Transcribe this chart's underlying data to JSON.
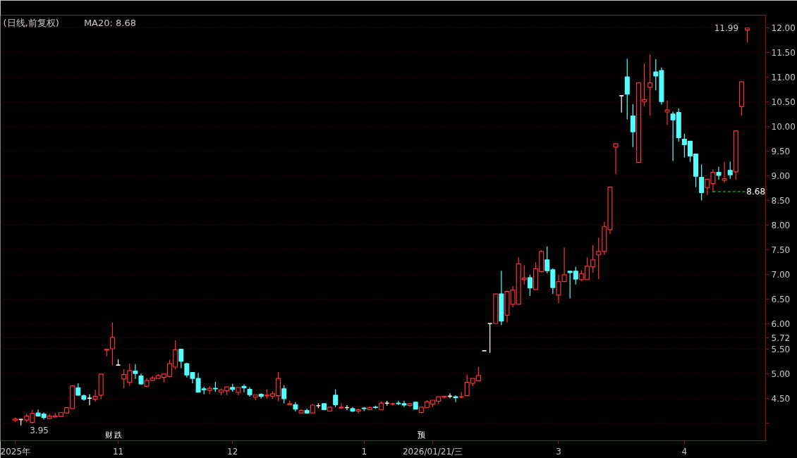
{
  "chart_data": {
    "type": "candlestick",
    "title": "(日线,前复权)",
    "subtitle": "MA20: 8.68",
    "categories": [
      "2025年",
      null,
      null,
      null,
      null,
      null,
      null,
      null,
      null,
      null,
      null,
      null,
      null,
      null,
      null,
      null,
      null,
      null,
      "11",
      null,
      null,
      null,
      null,
      null,
      null,
      null,
      null,
      null,
      null,
      null,
      null,
      null,
      null,
      null,
      null,
      null,
      null,
      null,
      "12",
      null,
      null,
      null,
      null,
      null,
      null,
      null,
      null,
      null,
      null,
      null,
      null,
      null,
      null,
      null,
      null,
      null,
      null,
      null,
      null,
      null,
      null,
      "1",
      null,
      null,
      null,
      null,
      null,
      null,
      null,
      null,
      null,
      null,
      null,
      "2026/01/21/三",
      null,
      null,
      null,
      null,
      null,
      null,
      null,
      null,
      null,
      null,
      null,
      null,
      null,
      null,
      null,
      null,
      null,
      null,
      null,
      null,
      null,
      "3",
      null,
      null,
      null,
      null,
      null,
      null,
      null,
      null,
      null,
      null,
      null,
      null,
      null,
      null,
      null,
      null,
      null,
      null,
      null,
      null,
      null,
      "4",
      null,
      null,
      null,
      null,
      null,
      null,
      null,
      null,
      null,
      null,
      null
    ],
    "ohlc": [
      [
        4.05,
        4.11,
        4.02,
        4.08
      ],
      [
        4.07,
        4.08,
        3.95,
        4.07
      ],
      [
        4.06,
        4.19,
        4.01,
        4.14
      ],
      [
        4.01,
        4.27,
        3.99,
        4.19
      ],
      [
        4.2,
        4.27,
        4.13,
        4.14
      ],
      [
        4.18,
        4.21,
        4.07,
        4.11
      ],
      [
        4.09,
        4.18,
        4.09,
        4.14
      ],
      [
        4.12,
        4.2,
        4.12,
        4.14
      ],
      [
        4.13,
        4.21,
        4.13,
        4.21
      ],
      [
        4.2,
        4.31,
        4.18,
        4.31
      ],
      [
        4.29,
        4.75,
        4.29,
        4.75
      ],
      [
        4.71,
        4.8,
        4.55,
        4.56
      ],
      [
        4.55,
        4.58,
        4.45,
        4.48
      ],
      [
        4.5,
        4.58,
        4.36,
        4.5
      ],
      [
        4.48,
        4.67,
        4.43,
        4.54
      ],
      [
        4.56,
        4.99,
        4.48,
        4.99
      ],
      [
        5.47,
        5.49,
        5.35,
        5.49
      ],
      [
        5.5,
        6.03,
        5.17,
        5.73
      ],
      [
        5.17,
        5.29,
        5.17,
        5.17
      ],
      [
        4.89,
        5.09,
        4.7,
        4.98
      ],
      [
        4.82,
        5.2,
        4.75,
        5.06
      ],
      [
        5.05,
        5.19,
        4.89,
        5.0
      ],
      [
        4.95,
        5.0,
        4.77,
        4.79
      ],
      [
        4.74,
        4.91,
        4.72,
        4.86
      ],
      [
        4.86,
        4.95,
        4.86,
        4.91
      ],
      [
        4.9,
        4.99,
        4.9,
        4.96
      ],
      [
        4.92,
        4.99,
        4.82,
        4.99
      ],
      [
        4.94,
        5.28,
        4.92,
        5.2
      ],
      [
        5.13,
        5.67,
        5.08,
        5.48
      ],
      [
        5.49,
        5.5,
        5.11,
        5.25
      ],
      [
        5.2,
        5.22,
        4.92,
        4.97
      ],
      [
        5.02,
        5.02,
        4.8,
        4.9
      ],
      [
        4.9,
        5.01,
        4.62,
        4.62
      ],
      [
        4.69,
        4.73,
        4.58,
        4.67
      ],
      [
        4.66,
        4.74,
        4.58,
        4.7
      ],
      [
        4.7,
        4.83,
        4.63,
        4.69
      ],
      [
        4.62,
        4.7,
        4.56,
        4.67
      ],
      [
        4.65,
        4.73,
        4.56,
        4.73
      ],
      [
        4.72,
        4.79,
        4.63,
        4.68
      ],
      [
        4.62,
        4.72,
        4.56,
        4.72
      ],
      [
        4.74,
        4.78,
        4.62,
        4.71
      ],
      [
        4.68,
        4.72,
        4.53,
        4.57
      ],
      [
        4.52,
        4.57,
        4.46,
        4.57
      ],
      [
        4.58,
        4.6,
        4.49,
        4.54
      ],
      [
        4.55,
        4.68,
        4.49,
        4.56
      ],
      [
        4.54,
        4.64,
        4.48,
        4.59
      ],
      [
        4.55,
        5.03,
        4.44,
        4.9
      ],
      [
        4.69,
        4.76,
        4.4,
        4.49
      ],
      [
        4.37,
        4.45,
        4.37,
        4.39
      ],
      [
        4.37,
        4.42,
        4.23,
        4.28
      ],
      [
        4.2,
        4.28,
        4.2,
        4.25
      ],
      [
        4.25,
        4.29,
        4.2,
        4.2
      ],
      [
        4.2,
        4.38,
        4.2,
        4.36
      ],
      [
        4.35,
        4.4,
        4.3,
        4.35
      ],
      [
        4.39,
        4.39,
        4.26,
        4.27
      ],
      [
        4.24,
        4.32,
        4.24,
        4.32
      ],
      [
        4.56,
        4.68,
        4.32,
        4.37
      ],
      [
        4.3,
        4.4,
        4.28,
        4.32
      ],
      [
        4.31,
        4.36,
        4.26,
        4.31
      ],
      [
        4.29,
        4.32,
        4.22,
        4.24
      ],
      [
        4.24,
        4.29,
        4.19,
        4.27
      ],
      [
        4.3,
        4.32,
        4.24,
        4.29
      ],
      [
        4.27,
        4.34,
        4.26,
        4.31
      ],
      [
        4.32,
        4.35,
        4.28,
        4.31
      ],
      [
        4.27,
        4.44,
        4.27,
        4.4
      ],
      [
        4.4,
        4.45,
        4.35,
        4.4
      ],
      [
        4.38,
        4.41,
        4.35,
        4.39
      ],
      [
        4.4,
        4.45,
        4.36,
        4.39
      ],
      [
        4.39,
        4.45,
        4.32,
        4.36
      ],
      [
        4.35,
        4.4,
        4.33,
        4.39
      ],
      [
        4.42,
        4.43,
        4.28,
        4.28
      ],
      [
        4.21,
        4.32,
        4.2,
        4.32
      ],
      [
        4.31,
        4.46,
        4.31,
        4.43
      ],
      [
        4.38,
        4.46,
        4.32,
        4.46
      ],
      [
        4.44,
        4.53,
        4.38,
        4.53
      ],
      [
        4.52,
        4.54,
        4.5,
        4.54
      ],
      [
        4.54,
        4.6,
        4.5,
        4.54
      ],
      [
        4.53,
        4.56,
        4.42,
        4.51
      ],
      [
        4.52,
        4.62,
        4.5,
        4.53
      ],
      [
        4.55,
        4.98,
        4.55,
        4.82
      ],
      [
        4.8,
        4.9,
        4.74,
        4.9
      ],
      [
        4.85,
        5.13,
        4.85,
        4.96
      ],
      [
        5.46,
        5.46,
        5.46,
        5.46
      ],
      [
        6.01,
        6.01,
        5.42,
        6.01
      ],
      [
        6.01,
        6.61,
        6.01,
        6.61
      ],
      [
        6.61,
        7.08,
        5.98,
        6.06
      ],
      [
        6.18,
        6.66,
        6.03,
        6.66
      ],
      [
        6.4,
        6.77,
        6.34,
        6.69
      ],
      [
        6.4,
        7.35,
        6.4,
        7.22
      ],
      [
        6.9,
        7.19,
        6.8,
        6.93
      ],
      [
        6.94,
        7.0,
        6.57,
        6.73
      ],
      [
        6.7,
        7.25,
        6.7,
        7.12
      ],
      [
        7.06,
        7.5,
        7.06,
        7.47
      ],
      [
        7.3,
        7.57,
        7.03,
        7.08
      ],
      [
        7.1,
        7.13,
        6.61,
        6.74
      ],
      [
        6.59,
        7.0,
        6.42,
        6.86
      ],
      [
        6.86,
        7.55,
        6.86,
        7.0
      ],
      [
        7.07,
        7.07,
        6.52,
        7.04
      ],
      [
        7.07,
        7.16,
        6.8,
        6.91
      ],
      [
        6.9,
        7.09,
        6.87,
        7.02
      ],
      [
        6.9,
        7.35,
        6.9,
        7.17
      ],
      [
        7.16,
        7.6,
        7.04,
        7.3
      ],
      [
        7.4,
        7.75,
        6.91,
        7.47
      ],
      [
        7.47,
        8.07,
        7.4,
        7.97
      ],
      [
        7.91,
        8.77,
        7.82,
        8.77
      ],
      [
        9.58,
        9.65,
        9.04,
        9.65
      ],
      [
        10.62,
        10.62,
        10.28,
        10.62
      ],
      [
        11.0,
        11.37,
        10.14,
        10.65
      ],
      [
        10.21,
        10.45,
        9.58,
        9.89
      ],
      [
        9.27,
        10.88,
        9.27,
        10.88
      ],
      [
        10.5,
        11.27,
        10.41,
        10.54
      ],
      [
        10.79,
        11.45,
        10.21,
        10.88
      ],
      [
        11.1,
        11.36,
        10.73,
        11.02
      ],
      [
        11.13,
        11.19,
        10.44,
        10.5
      ],
      [
        10.29,
        10.52,
        10.03,
        10.33
      ],
      [
        10.25,
        10.3,
        9.3,
        10.13
      ],
      [
        10.28,
        10.36,
        9.69,
        9.77
      ],
      [
        9.74,
        9.85,
        9.37,
        9.63
      ],
      [
        9.7,
        9.7,
        9.28,
        9.4
      ],
      [
        9.44,
        9.44,
        8.77,
        8.99
      ],
      [
        8.97,
        9.23,
        8.5,
        8.66
      ],
      [
        8.76,
        8.93,
        8.61,
        8.93
      ],
      [
        8.84,
        9.13,
        8.66,
        9.07
      ],
      [
        9.07,
        9.18,
        8.92,
        9.01
      ],
      [
        8.91,
        9.28,
        8.86,
        8.94
      ],
      [
        9.11,
        9.29,
        8.94,
        9.02
      ],
      [
        9.08,
        9.91,
        8.92,
        9.91
      ],
      [
        10.4,
        10.9,
        10.21,
        10.9
      ],
      [
        11.95,
        11.99,
        11.69,
        11.99
      ]
    ],
    "colors": [
      "#ff3232",
      "#ffffff",
      "#ff3232",
      "#ff3232",
      "#54ffff",
      "#54ffff",
      "#ff3232",
      "#ff3232",
      "#ff3232",
      "#ff3232",
      "#ff3232",
      "#54ffff",
      "#54ffff",
      "#ffffff",
      "#ff3232",
      "#ff3232",
      "#ff3232",
      "#ff3232",
      "#ffffff",
      "#ff3232",
      "#ff3232",
      "#54ffff",
      "#54ffff",
      "#ff3232",
      "#ff3232",
      "#ff3232",
      "#ff3232",
      "#ff3232",
      "#ff3232",
      "#54ffff",
      "#54ffff",
      "#54ffff",
      "#54ffff",
      "#54ffff",
      "#ff3232",
      "#54ffff",
      "#ff3232",
      "#ff3232",
      "#54ffff",
      "#ff3232",
      "#54ffff",
      "#54ffff",
      "#ff3232",
      "#54ffff",
      "#ff3232",
      "#ff3232",
      "#ff3232",
      "#54ffff",
      "#ff3232",
      "#54ffff",
      "#ff3232",
      "#54ffff",
      "#ff3232",
      "#ffffff",
      "#54ffff",
      "#ff3232",
      "#54ffff",
      "#ff3232",
      "#ffffff",
      "#54ffff",
      "#ff3232",
      "#54ffff",
      "#ff3232",
      "#54ffff",
      "#ff3232",
      "#ffffff",
      "#ff3232",
      "#54ffff",
      "#54ffff",
      "#ff3232",
      "#54ffff",
      "#ff3232",
      "#ff3232",
      "#ff3232",
      "#ff3232",
      "#ff3232",
      "#ffffff",
      "#54ffff",
      "#ff3232",
      "#ff3232",
      "#ff3232",
      "#ff3232",
      "#ffffff",
      "#ffffff",
      "#ff3232",
      "#54ffff",
      "#ff3232",
      "#ff3232",
      "#ff3232",
      "#ff3232",
      "#54ffff",
      "#ff3232",
      "#ff3232",
      "#54ffff",
      "#54ffff",
      "#ff3232",
      "#ff3232",
      "#54ffff",
      "#54ffff",
      "#ff3232",
      "#ff3232",
      "#ff3232",
      "#ff3232",
      "#ff3232",
      "#ff3232",
      "#ff3232",
      "#ffffff",
      "#54ffff",
      "#54ffff",
      "#ff3232",
      "#ff3232",
      "#ff3232",
      "#54ffff",
      "#54ffff",
      "#ff3232",
      "#54ffff",
      "#54ffff",
      "#54ffff",
      "#54ffff",
      "#54ffff",
      "#54ffff",
      "#ff3232",
      "#ff3232",
      "#54ffff",
      "#ff3232",
      "#54ffff",
      "#ff3232",
      "#ff3232",
      "#ff3232"
    ],
    "ylim": [
      3.64,
      12.25
    ],
    "yticks": [
      {
        "value": 4,
        "label": null
      },
      {
        "value": 4.5,
        "label": "4.50"
      },
      {
        "value": 5,
        "label": "5.00"
      },
      {
        "value": 5.5,
        "label": "5.50"
      },
      5.72,
      {
        "value": 6,
        "label": "6.00"
      },
      {
        "value": 6.5,
        "label": "6.50"
      },
      {
        "value": 7,
        "label": "7.00"
      },
      {
        "value": 7.5,
        "label": "7.50"
      },
      {
        "value": 8,
        "label": "8.00"
      },
      {
        "value": 8.5,
        "label": "8.50"
      },
      {
        "value": 9,
        "label": "9.00"
      },
      {
        "value": 9.5,
        "label": "9.50"
      },
      {
        "value": 10,
        "label": "10.00"
      },
      {
        "value": 10.5,
        "label": "10.50"
      },
      {
        "value": 11,
        "label": "11.00"
      },
      {
        "value": 11.5,
        "label": "11.50"
      },
      {
        "value": 12,
        "label": "12.00"
      }
    ],
    "grid": "y",
    "ref_lines": [
      {
        "axis": "y",
        "value": 8.68,
        "label": "8.68",
        "color": "#00ff00",
        "line_style": "dashed"
      }
    ],
    "annotations": [
      "财",
      "跌",
      "预",
      "3.95",
      "11.99"
    ]
  }
}
